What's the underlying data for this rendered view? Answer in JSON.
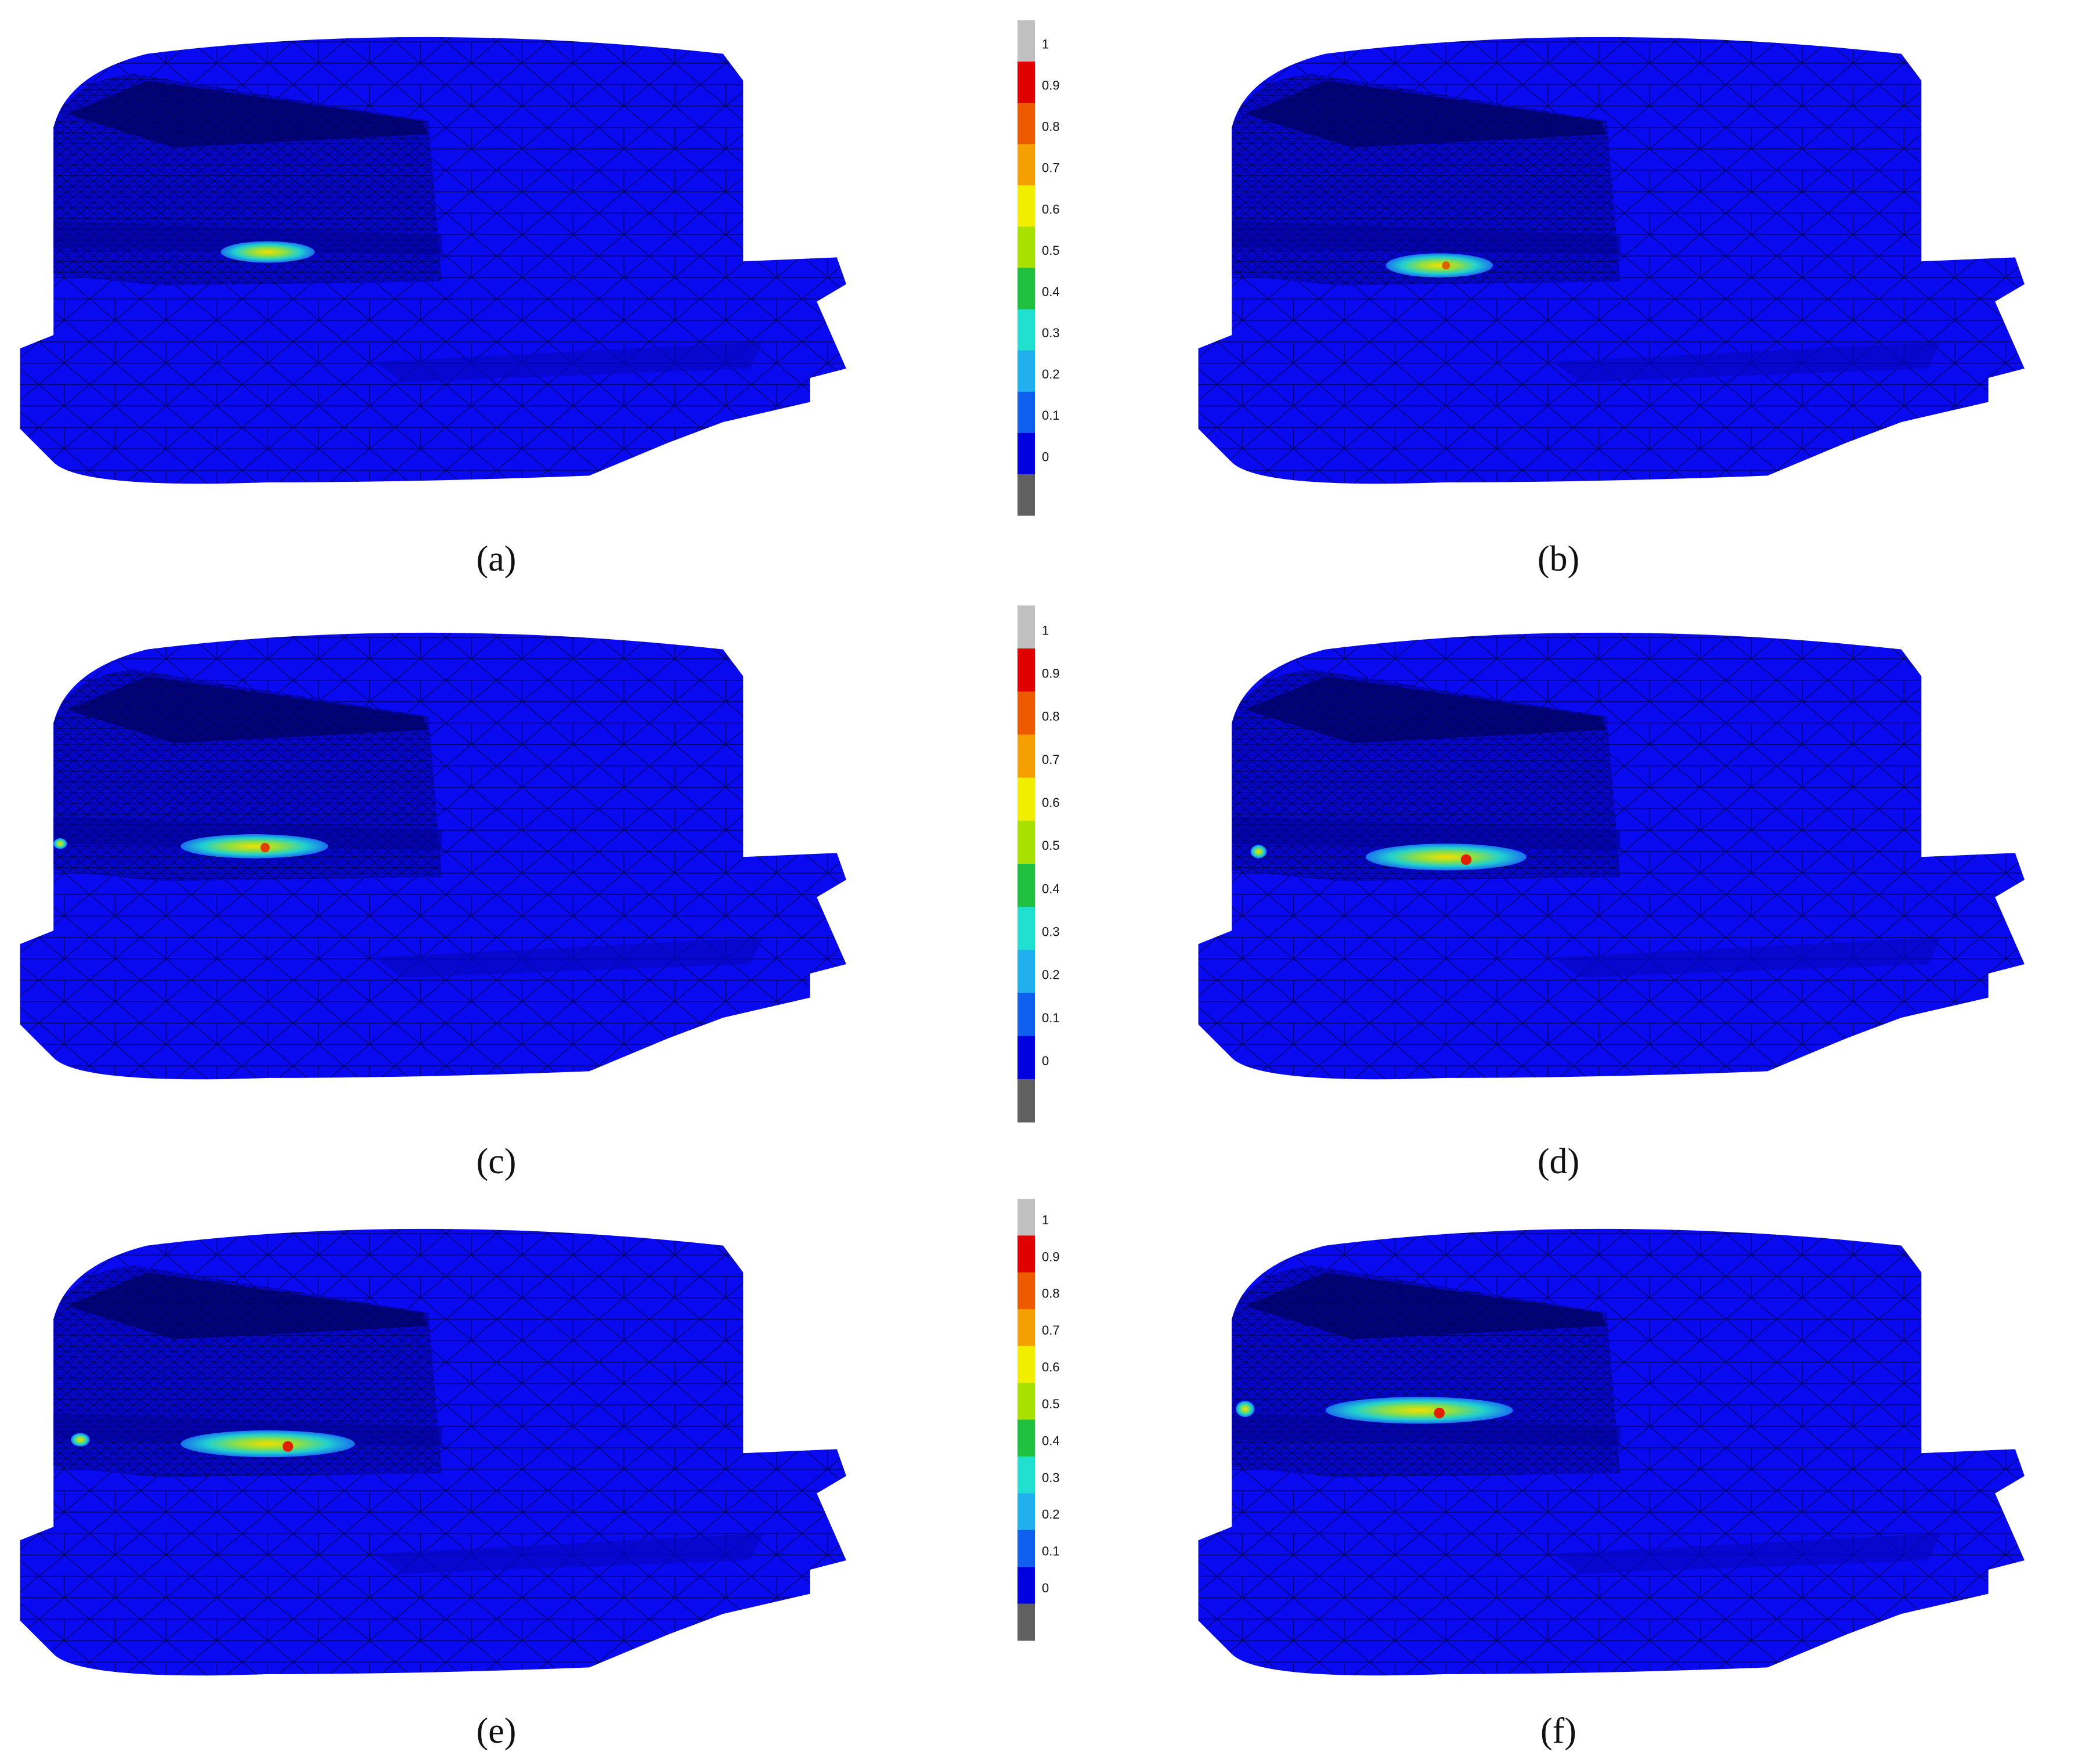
{
  "figure": {
    "panels": [
      {
        "label": "(a)"
      },
      {
        "label": "(b)"
      },
      {
        "label": "(c)"
      },
      {
        "label": "(d)"
      },
      {
        "label": "(e)"
      },
      {
        "label": "(f)"
      }
    ],
    "colorbars": [
      {
        "ticks": [
          1,
          0.9,
          0.8,
          0.7,
          0.6,
          0.5,
          0.4,
          0.3,
          0.2,
          0.1,
          0
        ]
      },
      {
        "ticks": [
          1,
          0.9,
          0.8,
          0.7,
          0.6,
          0.5,
          0.4,
          0.3,
          0.2,
          0.1,
          0
        ]
      },
      {
        "ticks": [
          1,
          0.9,
          0.8,
          0.7,
          0.6,
          0.5,
          0.4,
          0.3,
          0.2,
          0.1,
          0
        ]
      }
    ],
    "colorbar_colors": [
      "#c0c0c0",
      "#e00000",
      "#ee5a00",
      "#f5a000",
      "#f2ee00",
      "#a8e000",
      "#20c040",
      "#20e0d0",
      "#20b0f0",
      "#1060f0",
      "#0000e0",
      "#606060"
    ]
  }
}
